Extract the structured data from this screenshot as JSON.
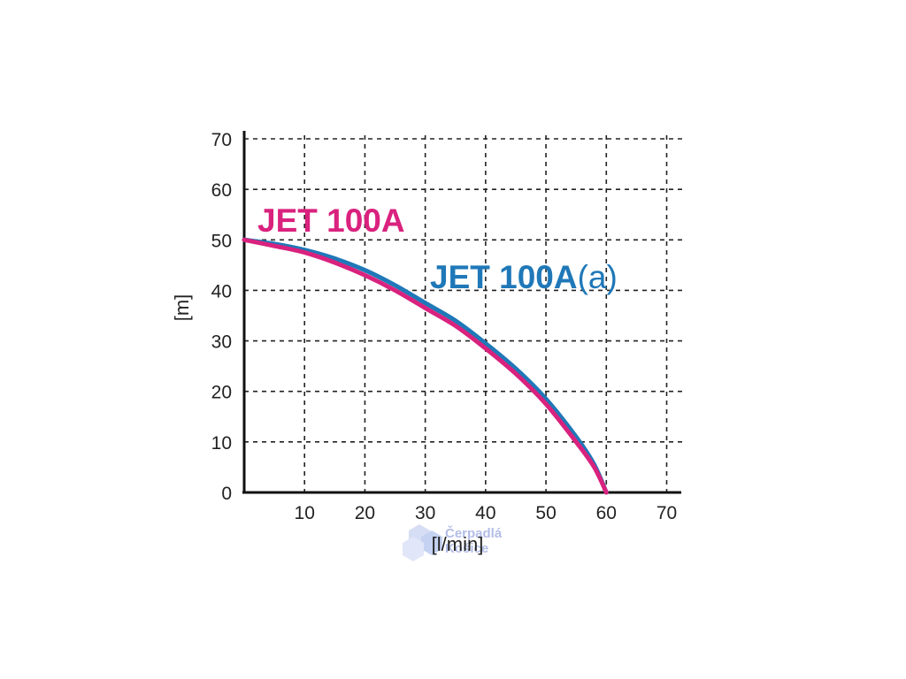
{
  "chart_data": {
    "type": "line",
    "xlabel": "[l/min]",
    "ylabel": "[m]",
    "xlim": [
      0,
      70
    ],
    "ylim": [
      0,
      70
    ],
    "xticks": [
      10,
      20,
      30,
      40,
      50,
      60,
      70
    ],
    "yticks": [
      0,
      10,
      20,
      30,
      40,
      50,
      60,
      70
    ],
    "grid": true,
    "grid_style": "dashed",
    "series": [
      {
        "name": "JET 100A",
        "color": "#d9227e",
        "x": [
          0,
          5,
          10,
          15,
          20,
          25,
          30,
          35,
          40,
          45,
          50,
          55,
          58,
          60
        ],
        "y": [
          50,
          48.8,
          47.5,
          45.5,
          43,
          40,
          36.5,
          33,
          28.5,
          23.5,
          17.5,
          10,
          5,
          0
        ]
      },
      {
        "name": "JET 100A(a)",
        "color": "#1f78b8",
        "x": [
          0,
          5,
          10,
          15,
          20,
          25,
          30,
          35,
          40,
          45,
          50,
          55,
          58,
          60
        ],
        "y": [
          50,
          49.2,
          48,
          46.3,
          44,
          41,
          37.5,
          34,
          29.5,
          24.5,
          18.5,
          11,
          5.5,
          0
        ]
      }
    ]
  },
  "labels": {
    "series_a": "JET 100A",
    "series_b_main": "JET 100A",
    "series_b_suffix": "(a)"
  },
  "watermark": {
    "line1": "Čerpadlá",
    "line2": "Košice"
  }
}
